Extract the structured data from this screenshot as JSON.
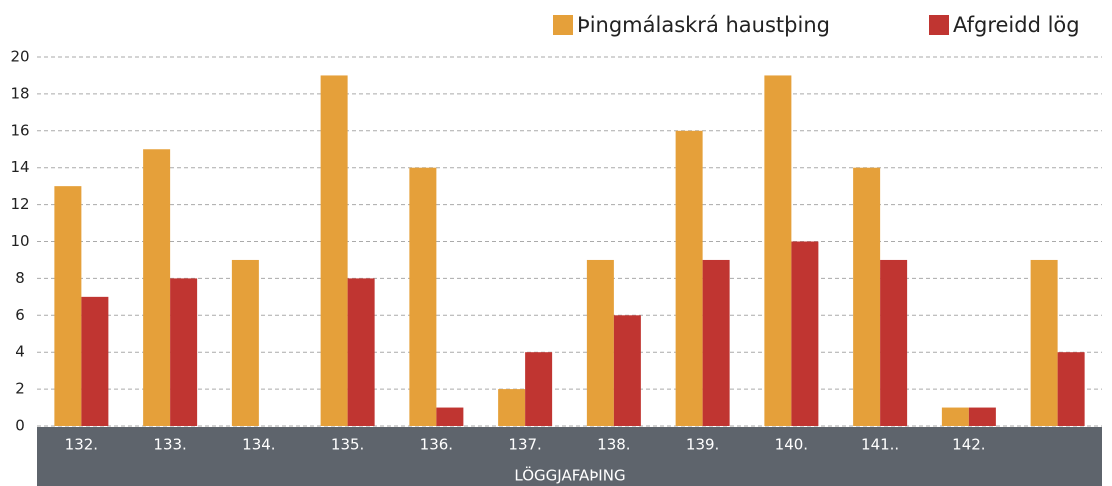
{
  "chart_data": {
    "type": "bar",
    "x_label": "LÖGGJAFAÞING",
    "categories": [
      "132.",
      "133.",
      "134.",
      "135.",
      "136.",
      "137.",
      "138.",
      "139.",
      "140.",
      "141..",
      "142.",
      null
    ],
    "series": [
      {
        "name": "Þingmálaskrá haustþing",
        "color": "#e5a03a",
        "values": [
          13,
          15,
          9,
          19,
          14,
          2,
          9,
          16,
          19,
          14,
          1,
          9
        ]
      },
      {
        "name": "Afgreidd lög",
        "color": "#c03531",
        "values": [
          7,
          8,
          0,
          8,
          1,
          4,
          6,
          9,
          10,
          9,
          1,
          4
        ]
      }
    ],
    "ylim": [
      0,
      20
    ],
    "yticks": [
      0,
      2,
      4,
      6,
      8,
      10,
      12,
      14,
      16,
      18,
      20
    ],
    "grid": true,
    "legend": "top-right"
  }
}
